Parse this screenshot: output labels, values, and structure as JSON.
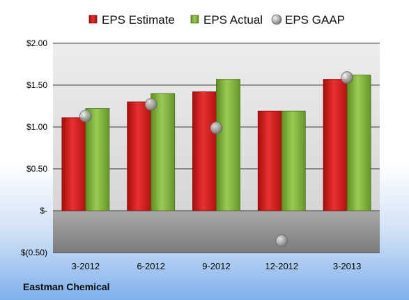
{
  "chart_data": {
    "type": "bar",
    "footer": "Eastman Chemical",
    "categories": [
      "3-2012",
      "6-2012",
      "9-2012",
      "12-2012",
      "3-2013"
    ],
    "series": [
      {
        "name": "EPS Estimate",
        "kind": "bar",
        "color": "#d01818",
        "values": [
          1.11,
          1.3,
          1.42,
          1.19,
          1.57
        ]
      },
      {
        "name": "EPS Actual",
        "kind": "bar",
        "color": "#7fb13a",
        "values": [
          1.22,
          1.4,
          1.57,
          1.19,
          1.62
        ]
      },
      {
        "name": "EPS GAAP",
        "kind": "marker",
        "color": "#a8a8a8",
        "values": [
          1.13,
          1.27,
          0.99,
          -0.36,
          1.59
        ]
      }
    ],
    "ylim": [
      -0.5,
      2.0
    ],
    "yticks": [
      2.0,
      1.5,
      1.0,
      0.5,
      0.0,
      -0.5
    ],
    "ytick_labels": [
      "$2.00",
      "$1.50",
      "$1.00",
      "$0.50",
      "$-",
      "$(0.50)"
    ],
    "legend_position": "top",
    "grid": true
  }
}
